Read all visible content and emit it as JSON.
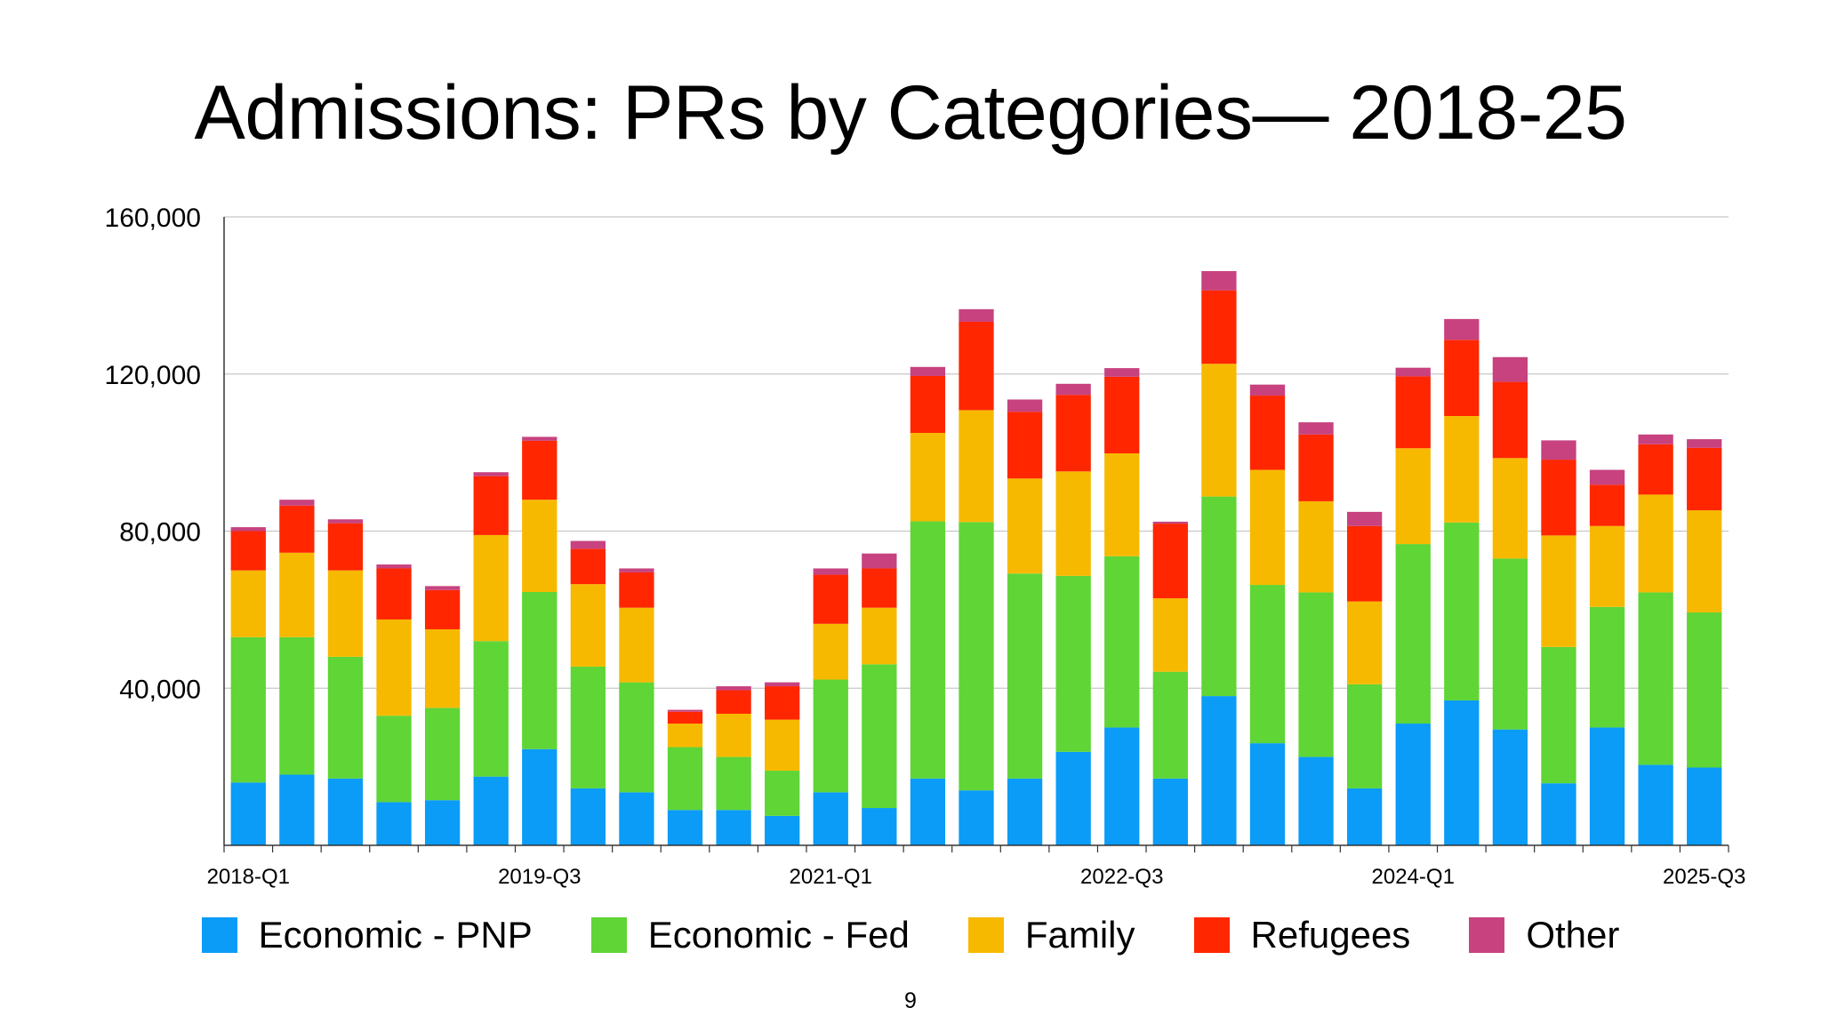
{
  "slide": {
    "title": "Admissions: PRs by Categories— 2018-25",
    "page_number": "9"
  },
  "colors": {
    "Economic - PNP": "#0a9cf7",
    "Economic - Fed": "#5fd536",
    "Family": "#f7b900",
    "Refugees": "#ff2600",
    "Other": "#c7427f"
  },
  "chart_data": {
    "type": "bar",
    "stacked": true,
    "title": "",
    "xlabel": "",
    "ylabel": "",
    "ylim": [
      0,
      160000
    ],
    "y_ticks": [
      40000,
      80000,
      120000,
      160000
    ],
    "y_tick_labels": [
      "40,000",
      "80,000",
      "120,000",
      "160,000"
    ],
    "grid": true,
    "legend_position": "bottom",
    "categories": [
      "2018-Q1",
      "2018-Q2",
      "2018-Q3",
      "2018-Q4",
      "2019-Q1",
      "2019-Q2",
      "2019-Q3",
      "2019-Q4",
      "2020-Q1",
      "2020-Q2",
      "2020-Q3",
      "2020-Q4",
      "2021-Q1",
      "2021-Q2",
      "2021-Q3",
      "2021-Q4",
      "2022-Q1",
      "2022-Q2",
      "2022-Q3",
      "2022-Q4",
      "2023-Q1",
      "2023-Q2",
      "2023-Q3",
      "2023-Q4",
      "2024-Q1",
      "2024-Q2",
      "2024-Q3",
      "2024-Q4",
      "2025-Q1",
      "2025-Q2",
      "2025-Q3"
    ],
    "x_tick_labels": [
      "2018-Q1",
      "2019-Q3",
      "2021-Q1",
      "2022-Q3",
      "2024-Q1",
      "2025-Q3"
    ],
    "series": [
      {
        "name": "Economic - PNP",
        "values": [
          16000,
          18000,
          17000,
          11000,
          11500,
          17500,
          24500,
          14500,
          13500,
          9000,
          9000,
          7500,
          13500,
          9500,
          17000,
          14000,
          17000,
          23800,
          30000,
          17000,
          38000,
          26000,
          22500,
          14500,
          31000,
          36900,
          29500,
          15800,
          30000,
          20500,
          19800
        ]
      },
      {
        "name": "Economic - Fed",
        "values": [
          37000,
          35000,
          31000,
          22000,
          23500,
          34500,
          40000,
          31000,
          28000,
          16000,
          13500,
          11500,
          28700,
          36600,
          65500,
          68300,
          52200,
          44800,
          43600,
          27200,
          50800,
          40300,
          41900,
          26500,
          45700,
          45300,
          43500,
          34700,
          30700,
          43900,
          39500
        ]
      },
      {
        "name": "Family",
        "values": [
          17000,
          21500,
          22000,
          24500,
          20000,
          27000,
          23500,
          21000,
          19000,
          6000,
          11000,
          13000,
          14200,
          14400,
          22500,
          28500,
          24200,
          26600,
          26200,
          18700,
          33800,
          29300,
          23200,
          21100,
          24400,
          27100,
          25600,
          28400,
          20600,
          24900,
          26000
        ]
      },
      {
        "name": "Refugees",
        "values": [
          10000,
          12000,
          12000,
          13000,
          10000,
          15000,
          15000,
          9000,
          9000,
          3000,
          6000,
          8500,
          12500,
          10000,
          14500,
          22500,
          17000,
          19500,
          19500,
          19000,
          18700,
          18900,
          17000,
          19200,
          18300,
          19400,
          19400,
          19300,
          10500,
          12800,
          15900
        ]
      },
      {
        "name": "Other",
        "values": [
          1000,
          1500,
          1000,
          1000,
          1000,
          1000,
          1000,
          2000,
          1000,
          500,
          1000,
          1000,
          1600,
          3800,
          2300,
          3200,
          3100,
          2800,
          2200,
          500,
          4900,
          2800,
          3100,
          3600,
          2200,
          5300,
          6300,
          4900,
          3800,
          2500,
          2200
        ]
      }
    ]
  }
}
